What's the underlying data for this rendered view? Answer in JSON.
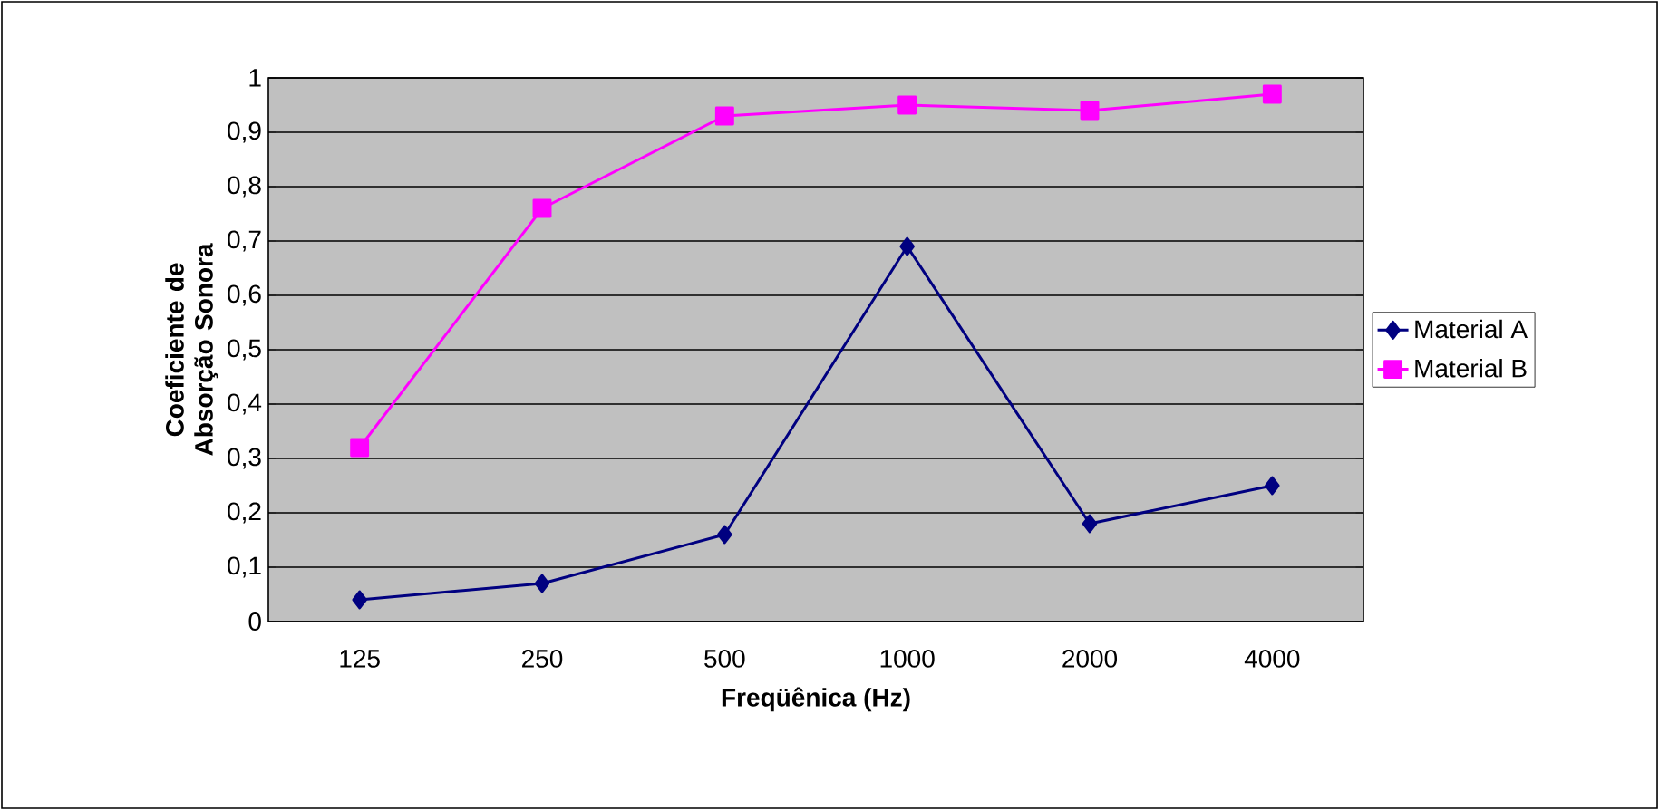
{
  "chart_data": {
    "type": "line",
    "xlabel": "Freqüênica (Hz)",
    "ylabel": "Coeficiente de Absorção Sonora",
    "categories": [
      "125",
      "250",
      "500",
      "1000",
      "2000",
      "4000"
    ],
    "series": [
      {
        "name": "Material A",
        "color": "#000080",
        "marker": "diamond",
        "values": [
          0.04,
          0.07,
          0.16,
          0.69,
          0.18,
          0.25
        ]
      },
      {
        "name": "Material B",
        "color": "#ff00ff",
        "marker": "square",
        "values": [
          0.32,
          0.76,
          0.93,
          0.95,
          0.94,
          0.97
        ]
      }
    ],
    "ylim": [
      0,
      1
    ],
    "yticks": [
      0,
      {
        "value": 0.1,
        "label": "0,1"
      },
      {
        "value": 0.2,
        "label": "0,2"
      },
      {
        "value": 0.3,
        "label": "0,3"
      },
      {
        "value": 0.4,
        "label": "0,4"
      },
      {
        "value": 0.5,
        "label": "0,5"
      },
      {
        "value": 0.6,
        "label": "0,6"
      },
      {
        "value": 0.7,
        "label": "0,7"
      },
      {
        "value": 0.8,
        "label": "0,8"
      },
      {
        "value": 0.9,
        "label": "0,9"
      },
      1
    ],
    "grid": "y",
    "legend": "right"
  }
}
